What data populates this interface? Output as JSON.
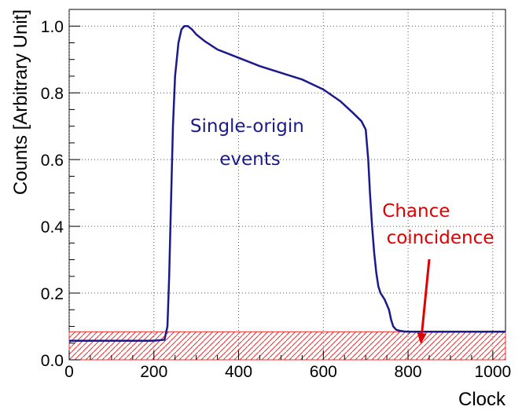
{
  "chart_data": {
    "type": "line",
    "xlabel": "Clock",
    "ylabel": "Counts [Arbitrary Unit]",
    "xlim": [
      0,
      1030
    ],
    "ylim": [
      0,
      1.05
    ],
    "grid": true,
    "x_ticks": [
      0,
      200,
      400,
      600,
      800,
      1000
    ],
    "x_tick_labels": [
      "0",
      "200",
      "400",
      "600",
      "800",
      "1000"
    ],
    "y_ticks": [
      0,
      0.2,
      0.4,
      0.6,
      0.8,
      1.0
    ],
    "y_tick_labels": [
      "0.0",
      "0.2",
      "0.4",
      "0.6",
      "0.8",
      "1.0"
    ],
    "series": [
      {
        "color": "#1a1a8c",
        "x": [
          0,
          200,
          225,
          232,
          236,
          240,
          245,
          250,
          258,
          265,
          272,
          280,
          290,
          300,
          320,
          350,
          400,
          450,
          500,
          550,
          600,
          640,
          670,
          690,
          700,
          706,
          710,
          715,
          720,
          725,
          730,
          735,
          745,
          755,
          760,
          765,
          772,
          780,
          790,
          800,
          820,
          850,
          900,
          1000,
          1030
        ],
        "y": [
          0.057,
          0.057,
          0.06,
          0.1,
          0.25,
          0.45,
          0.7,
          0.85,
          0.95,
          0.99,
          1.0,
          1.0,
          0.99,
          0.975,
          0.955,
          0.93,
          0.905,
          0.88,
          0.86,
          0.84,
          0.81,
          0.775,
          0.74,
          0.715,
          0.69,
          0.6,
          0.5,
          0.4,
          0.32,
          0.26,
          0.22,
          0.2,
          0.18,
          0.15,
          0.12,
          0.1,
          0.09,
          0.087,
          0.085,
          0.084,
          0.084,
          0.084,
          0.084,
          0.084,
          0.084
        ]
      }
    ],
    "background_band": {
      "color": "#e83030",
      "y": 0.084
    },
    "annotations": [
      {
        "text_lines": [
          "Single-origin",
          "events"
        ],
        "color": "#1a1a8c"
      },
      {
        "text_lines": [
          "Chance",
          "coincidence"
        ],
        "color": "#e00000",
        "arrow_to": [
          830,
          0.047
        ]
      }
    ]
  }
}
